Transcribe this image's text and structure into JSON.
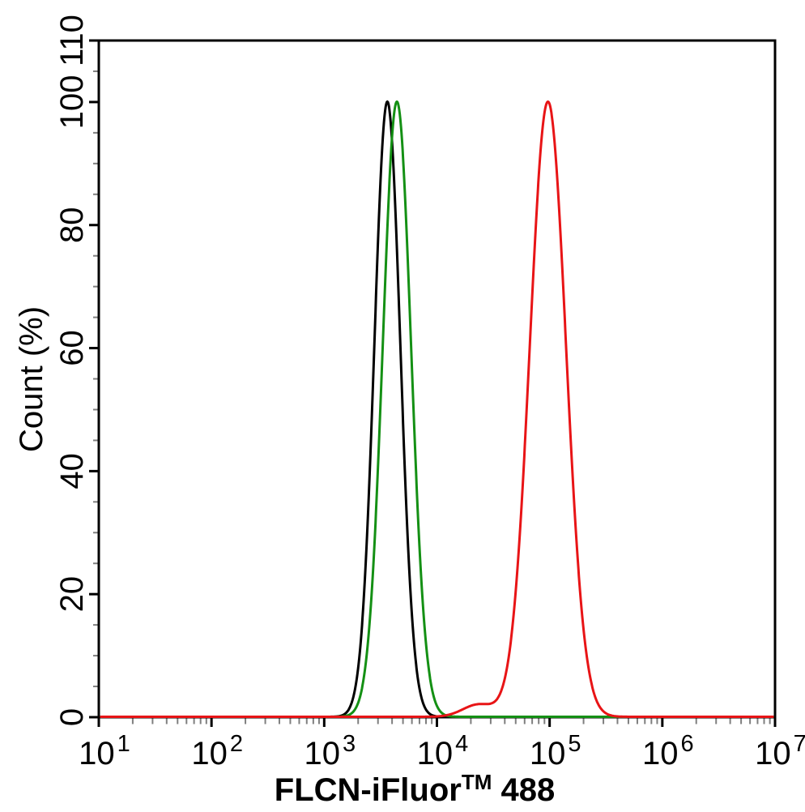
{
  "figure": {
    "background_color": "#ffffff",
    "frame_color": "#000000",
    "major_tick_color": "#000000",
    "minor_tick_color": "#7f7f7f",
    "x_axis": {
      "label_full": "FLCN-iFluor™ 488",
      "label_main": "FLCN-iFluor",
      "label_sup": "TM",
      "label_tail": " 488",
      "scale": "log10",
      "base_text": "10",
      "tick_exponents": [
        1,
        2,
        3,
        4,
        5,
        6,
        7
      ],
      "minor_multiples": [
        2,
        3,
        4,
        5,
        6,
        7,
        8,
        9
      ]
    },
    "y_axis": {
      "label": "Count (%)",
      "min": 0,
      "max": 110,
      "major_ticks": [
        0,
        20,
        40,
        60,
        80,
        100,
        110
      ],
      "minor_tick_step": 5
    }
  },
  "chart_data": {
    "type": "line",
    "subtype": "flow-cytometry-histogram",
    "title": "",
    "xlabel": "FLCN-iFluor™ 488",
    "ylabel": "Count (%)",
    "x_scale": "log10",
    "xlim": [
      10,
      10000000
    ],
    "ylim": [
      0,
      110
    ],
    "grid": false,
    "legend": "none",
    "series": [
      {
        "name": "black-control-curve",
        "color": "#000000",
        "peak": {
          "x": 3600,
          "y": 100
        },
        "model": "gaussian-mixture-log10x",
        "components": [
          {
            "log_center": 3.56,
            "log_sigma": 0.115,
            "amplitude": 100
          }
        ]
      },
      {
        "name": "green-control-curve",
        "color": "#149014",
        "peak": {
          "x": 4400,
          "y": 100
        },
        "model": "gaussian-mixture-log10x",
        "components": [
          {
            "log_center": 3.645,
            "log_sigma": 0.125,
            "amplitude": 100
          }
        ]
      },
      {
        "name": "red-flcn-curve",
        "color": "#e81416",
        "peak": {
          "x": 97000,
          "y": 100
        },
        "model": "gaussian-mixture-log10x",
        "components": [
          {
            "log_center": 4.985,
            "log_sigma": 0.16,
            "amplitude": 100
          },
          {
            "log_center": 4.37,
            "log_sigma": 0.14,
            "amplitude": 2
          }
        ]
      }
    ]
  }
}
